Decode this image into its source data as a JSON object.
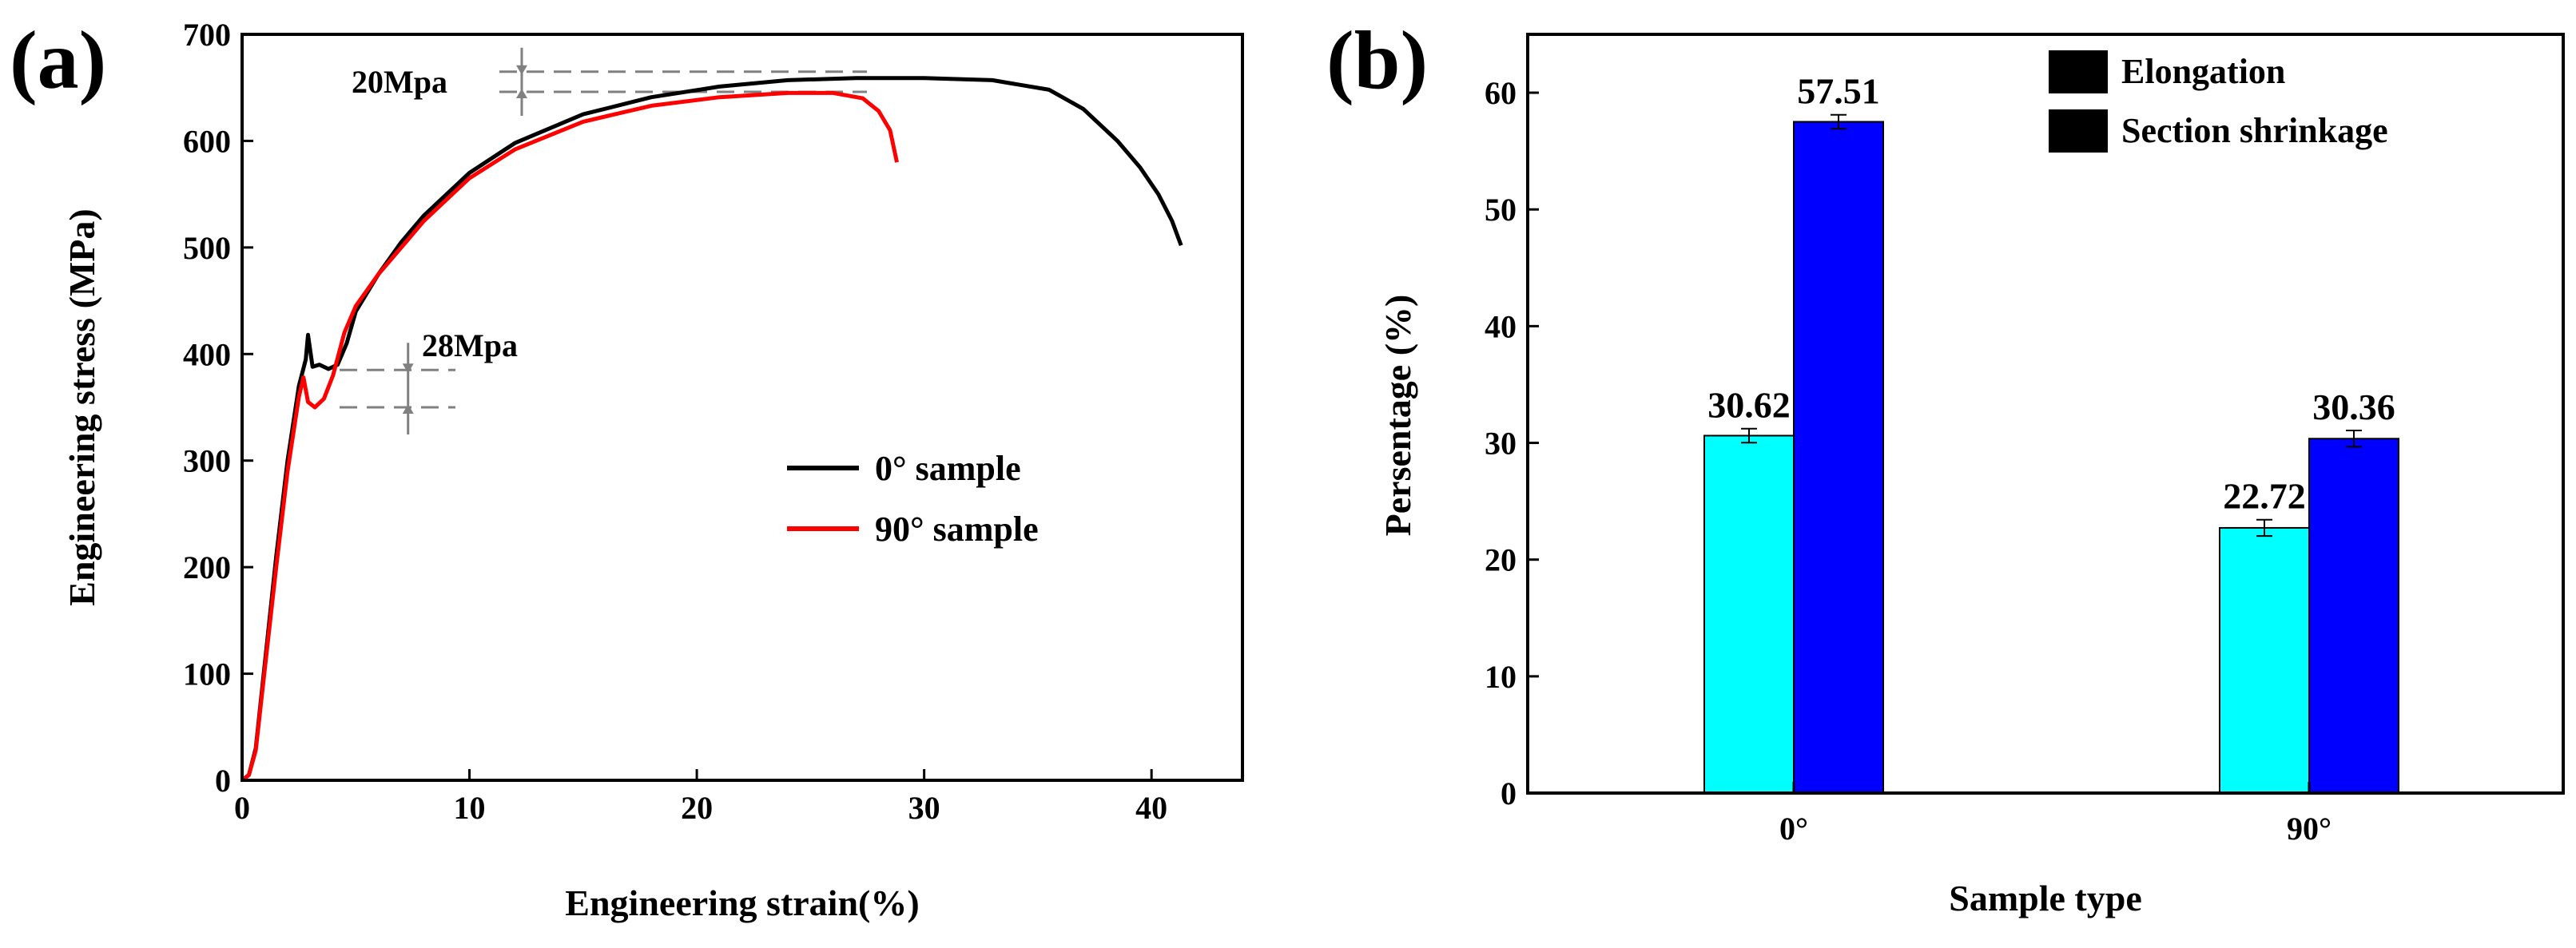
{
  "chart_data": [
    {
      "type": "line",
      "panel_label": "(a)",
      "xlabel": "Engineering strain(%)",
      "ylabel": "Engineering stress (MPa)",
      "xlim": [
        0,
        44
      ],
      "ylim": [
        0,
        700
      ],
      "xticks": [
        0,
        10,
        20,
        30,
        40
      ],
      "yticks": [
        0,
        100,
        200,
        300,
        400,
        500,
        600,
        700
      ],
      "legend_position": "center-right",
      "series": [
        {
          "name": "0° sample",
          "color": "#000000",
          "x": [
            0,
            0.3,
            0.6,
            1.0,
            1.5,
            2.0,
            2.5,
            2.8,
            2.9,
            3.1,
            3.4,
            3.8,
            4.2,
            4.6,
            5.0,
            6.0,
            7.0,
            8.0,
            10.0,
            12.0,
            15.0,
            18.0,
            21.0,
            24.0,
            27.0,
            30.0,
            33.0,
            35.5,
            37.0,
            38.5,
            39.5,
            40.3,
            40.9,
            41.3
          ],
          "y": [
            0,
            5,
            30,
            110,
            210,
            300,
            370,
            395,
            418,
            388,
            390,
            386,
            390,
            410,
            440,
            475,
            505,
            530,
            570,
            598,
            625,
            641,
            651,
            657,
            659,
            659,
            657,
            648,
            630,
            600,
            575,
            550,
            525,
            502
          ]
        },
        {
          "name": "90° sample",
          "color": "#ff0000",
          "x": [
            0,
            0.3,
            0.6,
            1.0,
            1.5,
            2.0,
            2.5,
            2.7,
            2.9,
            3.2,
            3.6,
            4.0,
            4.5,
            5.0,
            6.0,
            7.0,
            8.0,
            10.0,
            12.0,
            15.0,
            18.0,
            21.0,
            24.0,
            26.0,
            27.3,
            28.0,
            28.5,
            28.8
          ],
          "y": [
            0,
            5,
            28,
            105,
            200,
            290,
            360,
            378,
            355,
            350,
            358,
            380,
            420,
            445,
            475,
            500,
            525,
            565,
            592,
            618,
            633,
            641,
            645,
            645,
            640,
            628,
            610,
            580
          ]
        }
      ],
      "annotations": [
        {
          "text": "20Mpa",
          "y_values": [
            646,
            665
          ],
          "at_x": 12.3
        },
        {
          "text": "28Mpa",
          "y_values": [
            350,
            385
          ],
          "at_x": 7.3
        }
      ]
    },
    {
      "type": "bar",
      "panel_label": "(b)",
      "xlabel": "Sample type",
      "ylabel": "Persentage (%)",
      "categories": [
        "0°",
        "90°"
      ],
      "ylim": [
        0,
        65
      ],
      "yticks": [
        0,
        10,
        20,
        30,
        40,
        50,
        60
      ],
      "legend_position": "top-right",
      "series": [
        {
          "name": "Elongation",
          "color": "#00ffff",
          "values": [
            30.62,
            22.72
          ],
          "labels": [
            "30.62",
            "22.72"
          ],
          "errors": [
            0.6,
            0.7
          ]
        },
        {
          "name": "Section shrinkage",
          "color": "#0000ff",
          "values": [
            57.51,
            30.36
          ],
          "labels": [
            "57.51",
            "30.36"
          ],
          "errors": [
            0.6,
            0.7
          ]
        }
      ]
    }
  ]
}
